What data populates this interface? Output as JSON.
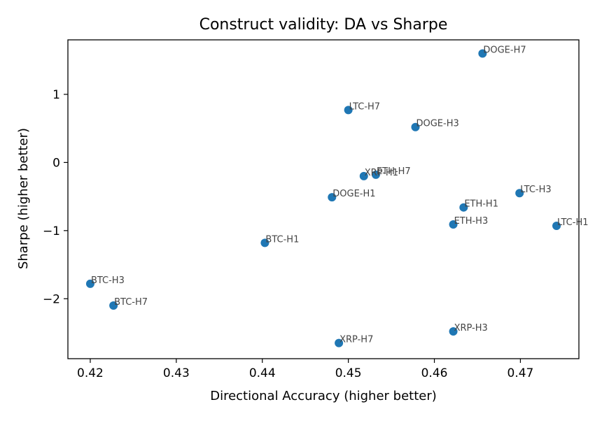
{
  "chart_data": {
    "type": "scatter",
    "title": "Construct validity: DA vs Sharpe",
    "xlabel": "Directional Accuracy (higher better)",
    "ylabel": "Sharpe (higher better)",
    "xlim": [
      0.4174,
      0.4768
    ],
    "ylim": [
      -2.88,
      1.8
    ],
    "xticks": [
      0.42,
      0.43,
      0.44,
      0.45,
      0.46,
      0.47
    ],
    "xtick_labels": [
      "0.42",
      "0.43",
      "0.44",
      "0.45",
      "0.46",
      "0.47"
    ],
    "yticks": [
      -2,
      -1,
      0,
      1
    ],
    "ytick_labels": [
      "−2",
      "−1",
      "0",
      "1"
    ],
    "grid": false,
    "point_color": "#1f77b4",
    "points": [
      {
        "label": "DOGE-H7",
        "x": 0.4656,
        "y": 1.6
      },
      {
        "label": "LTC-H7",
        "x": 0.45,
        "y": 0.77
      },
      {
        "label": "DOGE-H3",
        "x": 0.4578,
        "y": 0.52
      },
      {
        "label": "XRP-H1",
        "x": 0.4518,
        "y": -0.2
      },
      {
        "label": "ETH-H7",
        "x": 0.4532,
        "y": -0.18
      },
      {
        "label": "DOGE-H1",
        "x": 0.4481,
        "y": -0.51
      },
      {
        "label": "LTC-H3",
        "x": 0.4699,
        "y": -0.45
      },
      {
        "label": "ETH-H1",
        "x": 0.4634,
        "y": -0.66
      },
      {
        "label": "ETH-H3",
        "x": 0.4622,
        "y": -0.91
      },
      {
        "label": "LTC-H1",
        "x": 0.4742,
        "y": -0.93
      },
      {
        "label": "BTC-H1",
        "x": 0.4403,
        "y": -1.18
      },
      {
        "label": "BTC-H3",
        "x": 0.42,
        "y": -1.78
      },
      {
        "label": "BTC-H7",
        "x": 0.4227,
        "y": -2.1
      },
      {
        "label": "XRP-H3",
        "x": 0.4622,
        "y": -2.48
      },
      {
        "label": "XRP-H7",
        "x": 0.4489,
        "y": -2.65
      }
    ]
  }
}
